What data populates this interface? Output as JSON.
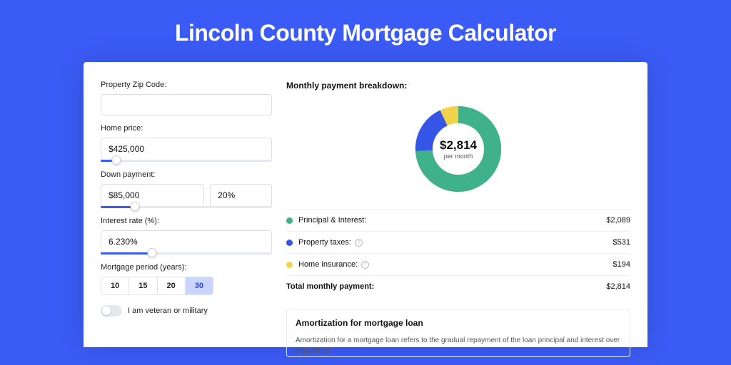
{
  "title": "Lincoln County Mortgage Calculator",
  "colors": {
    "page_bg": "#3b5bf6",
    "card_bg": "#ffffff",
    "input_border": "#dcdfe6",
    "slider_fill": "#3b5bf6",
    "period_active_bg": "#c9d4ff",
    "period_active_text": "#2a46d8",
    "text": "#111111",
    "muted": "#555555",
    "divider": "#f0f1f4"
  },
  "form": {
    "zip_label": "Property Zip Code:",
    "zip_value": "",
    "home_price_label": "Home price:",
    "home_price_value": "$425,000",
    "home_price_slider_pct": 9,
    "down_payment_label": "Down payment:",
    "down_payment_value": "$85,000",
    "down_payment_pct_value": "20%",
    "down_payment_slider_pct": 20,
    "rate_label": "Interest rate (%):",
    "rate_value": "6.230%",
    "rate_slider_pct": 30,
    "period_label": "Mortgage period (years):",
    "period_options": [
      "10",
      "15",
      "20",
      "30"
    ],
    "period_selected": "30",
    "veteran_label": "I am veteran or military",
    "veteran_on": false
  },
  "breakdown": {
    "title": "Monthly payment breakdown:",
    "chart": {
      "type": "donut",
      "inner_radius": 0.6,
      "slices": [
        {
          "label": "Principal & Interest:",
          "value": 2089,
          "display": "$2,089",
          "color": "#3fb28c",
          "angle": 267
        },
        {
          "label": "Property taxes:",
          "value": 531,
          "display": "$531",
          "color": "#3555e6",
          "angle": 68,
          "info": true
        },
        {
          "label": "Home insurance:",
          "value": 194,
          "display": "$194",
          "color": "#f3d24b",
          "angle": 25,
          "info": true
        }
      ],
      "center_amount": "$2,814",
      "center_sub": "per month"
    },
    "total_label": "Total monthly payment:",
    "total_value": "$2,814"
  },
  "amortization": {
    "title": "Amortization for mortgage loan",
    "text": "Amortization for a mortgage loan refers to the gradual repayment of the loan principal and interest over a specified"
  }
}
